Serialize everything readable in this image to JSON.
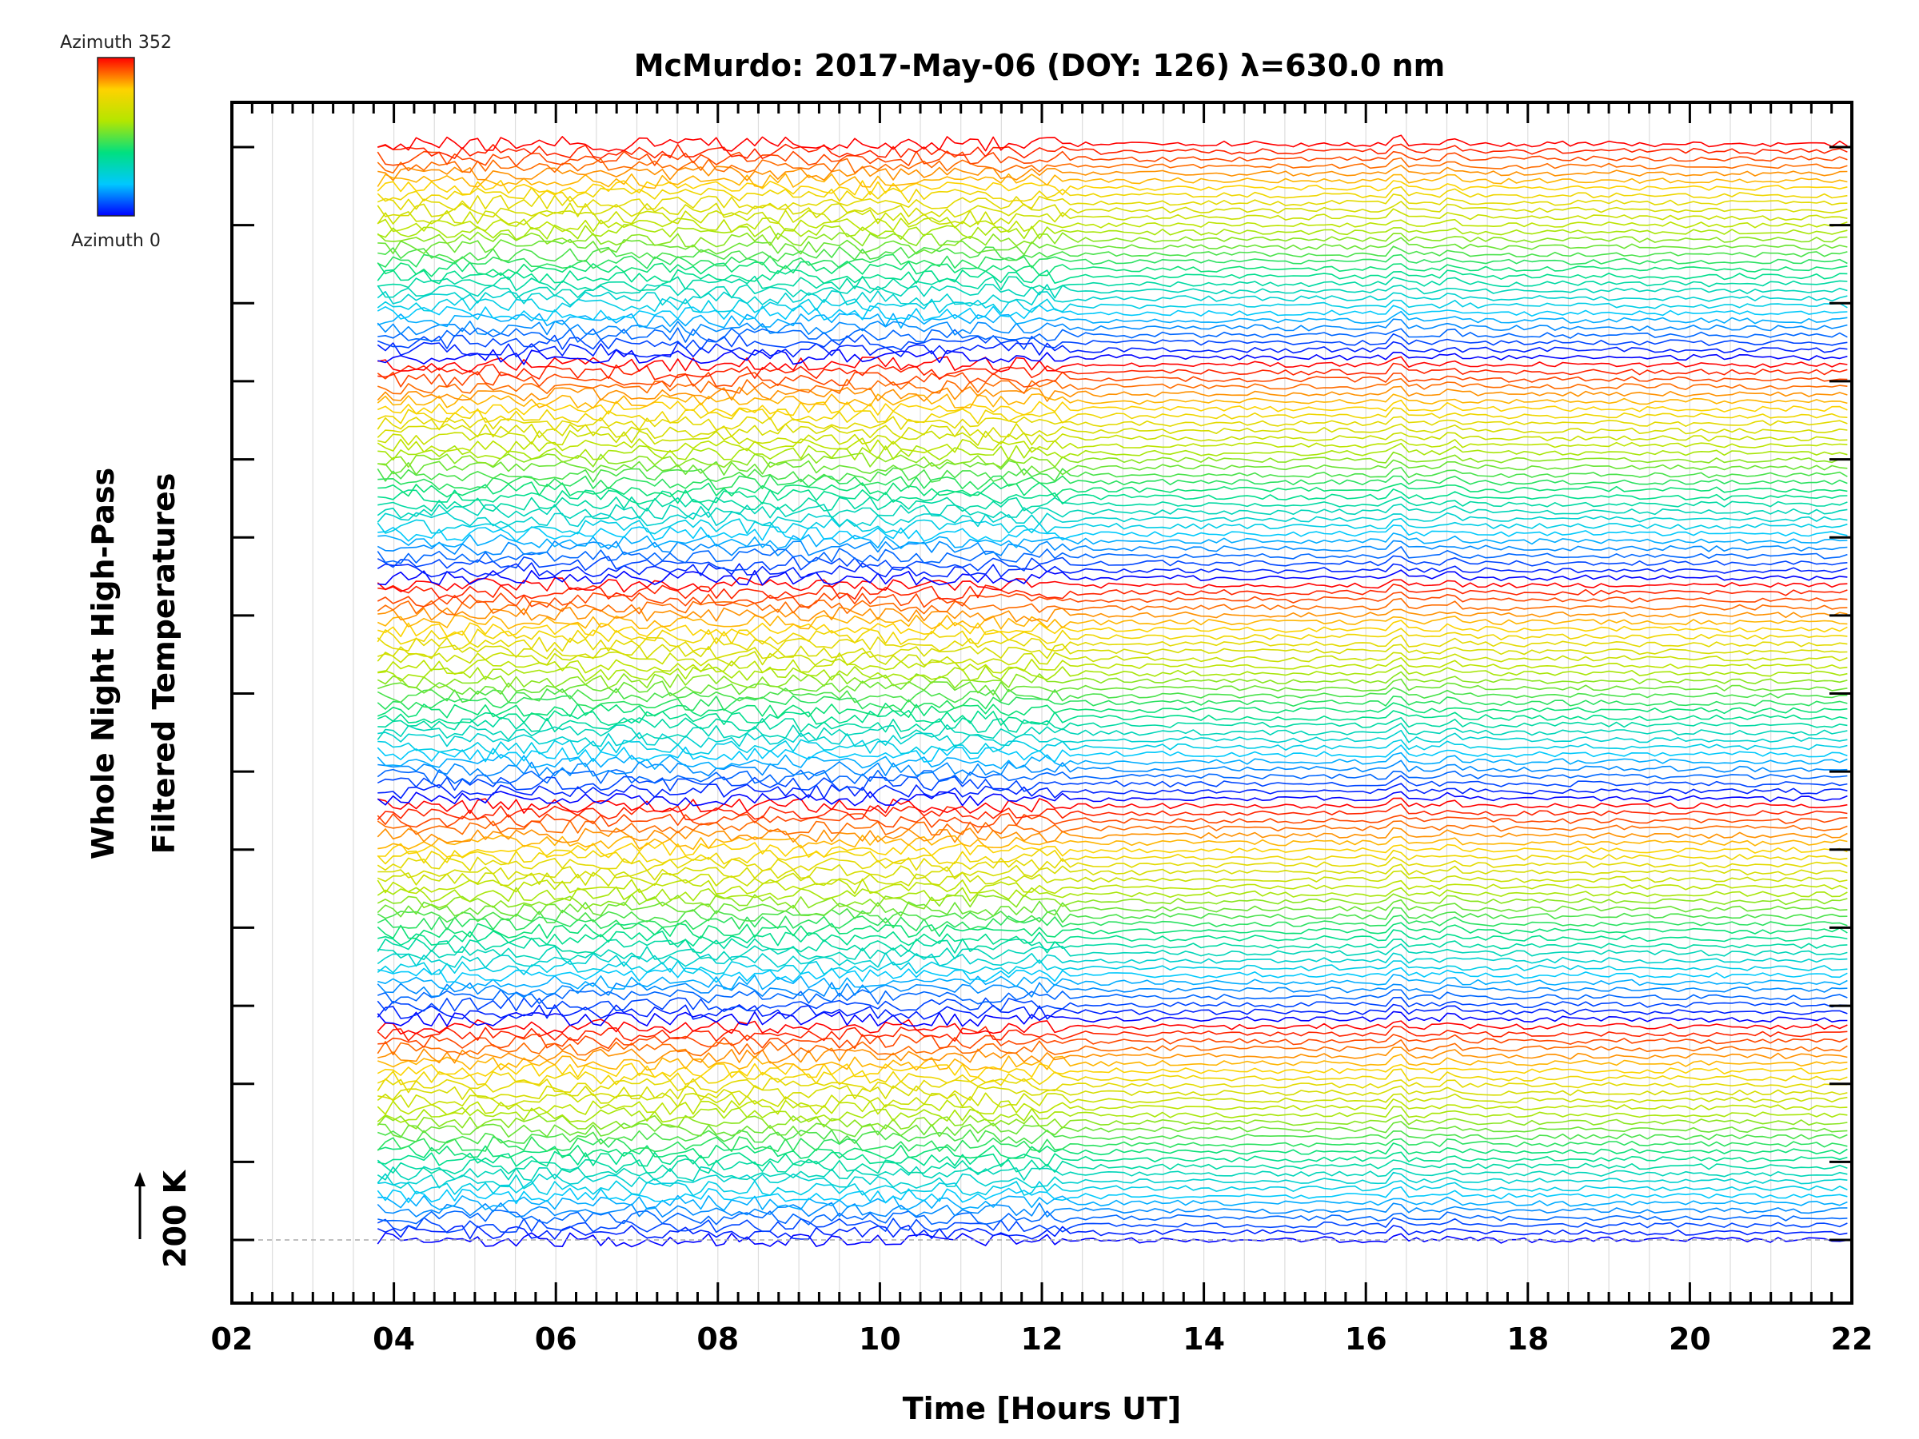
{
  "chart_data": {
    "type": "line",
    "title": "McMurdo: 2017-May-06 (DOY: 126) λ=630.0 nm",
    "xlabel": "Time [Hours UT]",
    "ylabel_line1": "Whole Night High-Pass",
    "ylabel_line2": "Filtered Temperatures",
    "xlim": [
      2,
      22
    ],
    "x_ticks": [
      "02",
      "04",
      "06",
      "08",
      "10",
      "12",
      "14",
      "16",
      "18",
      "20",
      "22"
    ],
    "x_minor_step": 0.5,
    "grid_x": true,
    "data_start_hour": 3.8,
    "data_end_hour": 22,
    "y_scale_bar": {
      "label": "200 K",
      "value_kelvin": 200
    },
    "y_major_ticks": 15,
    "series_groups": 5,
    "series_per_group": 30,
    "colorbar": {
      "top_label": "Azimuth 352",
      "bottom_label": "Azimuth 0",
      "min_azimuth": 0,
      "max_azimuth": 352,
      "colors": [
        "#0000ff",
        "#00c8ff",
        "#00e080",
        "#b4e600",
        "#ffd200",
        "#ff0000"
      ]
    }
  }
}
